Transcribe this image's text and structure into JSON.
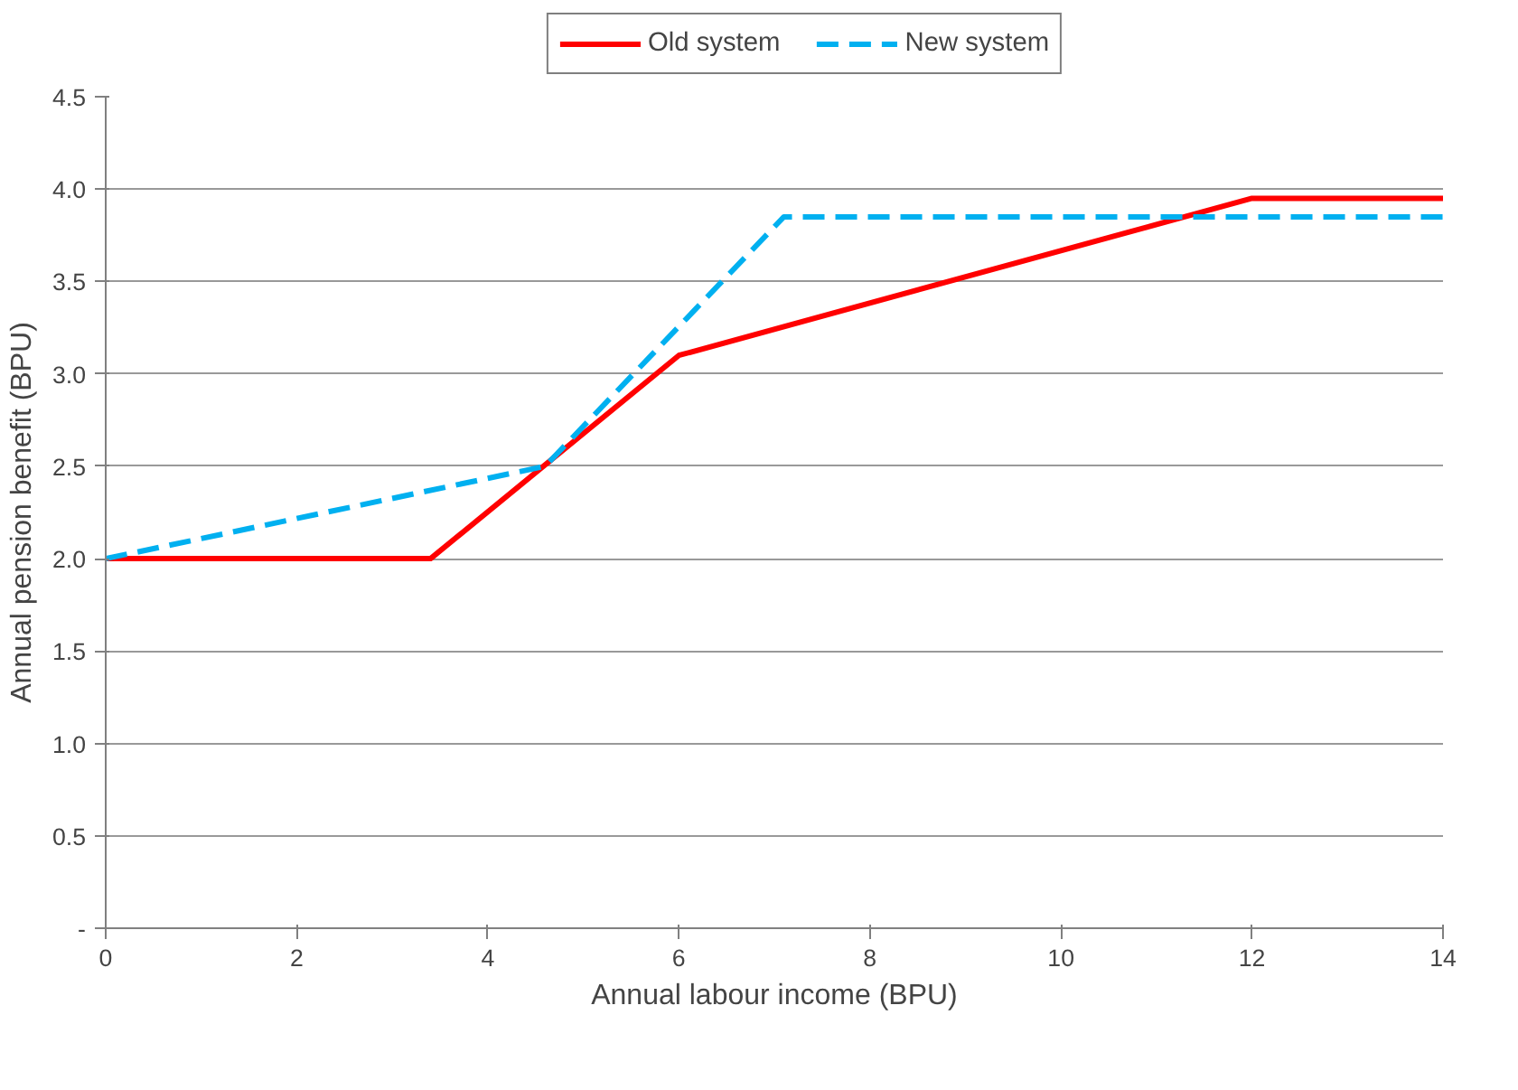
{
  "chart_data": {
    "type": "line",
    "xlabel": "Annual labour income (BPU)",
    "ylabel": "Annual pension benefit (BPU)",
    "xlim": [
      0,
      14
    ],
    "xticks": [
      0,
      2,
      4,
      6,
      8,
      10,
      12,
      14
    ],
    "ylim": [
      0,
      4.5
    ],
    "yticks": [
      {
        "value": 0,
        "label": "-"
      },
      {
        "value": 0.5,
        "label": "0.5"
      },
      {
        "value": 1,
        "label": "1.0"
      },
      {
        "value": 1.5,
        "label": "1.5"
      },
      {
        "value": 2,
        "label": "2.0"
      },
      {
        "value": 2.5,
        "label": "2.5"
      },
      {
        "value": 3,
        "label": "3.0"
      },
      {
        "value": 3.5,
        "label": "3.5"
      },
      {
        "value": 4,
        "label": "4.0"
      },
      {
        "value": 4.5,
        "label": "4.5"
      }
    ],
    "grid": "y",
    "legend": "top",
    "marker": "none",
    "series": [
      {
        "name": "Old system",
        "color": "#ff0000",
        "line_style": "solid",
        "x": [
          0,
          3.4,
          6,
          12,
          14
        ],
        "values": [
          2.0,
          2.0,
          3.1,
          3.95,
          3.95
        ]
      },
      {
        "name": "New system",
        "color": "#00b0f0",
        "line_style": "dashed",
        "x": [
          0,
          4.6,
          7.1,
          14
        ],
        "values": [
          2.0,
          2.5,
          3.85,
          3.85
        ]
      }
    ]
  }
}
